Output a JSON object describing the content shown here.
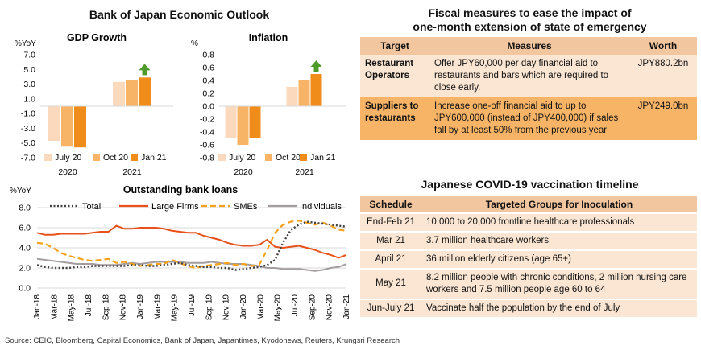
{
  "boj": {
    "title": "Bank of Japan Economic Outlook",
    "legend": [
      "July 20",
      "Oct 20",
      "Jan 21"
    ],
    "colors": [
      "#fbd9bc",
      "#f7b466",
      "#f08c1a"
    ],
    "arrow_color": "#4e9a2a"
  },
  "chart_data": [
    {
      "type": "bar",
      "title": "GDP Growth",
      "ylabel": "%YoY",
      "ylim": [
        -7.0,
        7.0
      ],
      "yticks": [
        "7.0",
        "5.0",
        "3.0",
        "1.0",
        "-1.0",
        "-3.0",
        "-5.0",
        "-7.0"
      ],
      "categories": [
        "2020",
        "2021"
      ],
      "series": [
        {
          "name": "July 20",
          "values": [
            -4.7,
            3.3
          ]
        },
        {
          "name": "Oct 20",
          "values": [
            -5.5,
            3.6
          ]
        },
        {
          "name": "Jan 21",
          "values": [
            -5.6,
            3.9
          ]
        }
      ],
      "arrow_on": "2021"
    },
    {
      "type": "bar",
      "title": "Inflation",
      "ylabel": "%",
      "ylim": [
        -0.8,
        0.8
      ],
      "yticks": [
        "0.8",
        "0.6",
        "0.4",
        "0.2",
        "0.0",
        "-0.2",
        "-0.4",
        "-0.6",
        "-0.8"
      ],
      "categories": [
        "2020",
        "2021"
      ],
      "series": [
        {
          "name": "July 20",
          "values": [
            -0.5,
            0.3
          ]
        },
        {
          "name": "Oct 20",
          "values": [
            -0.6,
            0.4
          ]
        },
        {
          "name": "Jan 21",
          "values": [
            -0.5,
            0.5
          ]
        }
      ],
      "arrow_on": "2021"
    },
    {
      "type": "line",
      "title": "Outstanding bank loans",
      "ylabel": "%YoY",
      "ylim": [
        0,
        8
      ],
      "yticks": [
        "8.0",
        "6.0",
        "4.0",
        "2.0",
        "0.0"
      ],
      "x_labels": [
        "Jan-18",
        "Mar-18",
        "May-18",
        "Jul-18",
        "Sep-18",
        "Nov-18",
        "Jan-19",
        "Mar-19",
        "May-19",
        "Jul-19",
        "Sep-19",
        "Nov-19",
        "Jan-20",
        "Mar-20",
        "May-20",
        "Jul-20",
        "Sep-20",
        "Nov-20",
        "Jan-21"
      ],
      "legend": [
        "Total",
        "Large Firms",
        "SMEs",
        "Individuals"
      ],
      "series": [
        {
          "name": "Total",
          "color": "#404040",
          "style": "dotted",
          "values": [
            2.3,
            2.1,
            2.0,
            2.0,
            2.0,
            2.1,
            2.1,
            2.2,
            2.2,
            2.2,
            2.2,
            2.2,
            2.3,
            2.3,
            2.2,
            2.2,
            2.3,
            2.4,
            2.5,
            2.3,
            2.2,
            2.1,
            2.1,
            2.0,
            2.0,
            1.8,
            1.9,
            2.0,
            2.1,
            2.3,
            2.8,
            4.5,
            5.8,
            6.3,
            6.6,
            6.5,
            6.4,
            6.3,
            6.2,
            6.1
          ]
        },
        {
          "name": "Large Firms",
          "color": "#e8521a",
          "style": "solid",
          "values": [
            5.5,
            5.3,
            5.3,
            5.4,
            5.4,
            5.4,
            5.4,
            5.5,
            5.6,
            5.6,
            6.2,
            5.9,
            5.9,
            6.0,
            6.0,
            6.0,
            5.9,
            5.7,
            5.6,
            5.5,
            5.5,
            5.2,
            5.0,
            4.8,
            4.5,
            4.3,
            4.2,
            4.2,
            4.3,
            4.8,
            4.1,
            4.0,
            4.1,
            4.2,
            4.0,
            3.8,
            3.5,
            3.3,
            3.0,
            3.3
          ]
        },
        {
          "name": "SMEs",
          "color": "#f5a11c",
          "style": "dashed",
          "values": [
            4.5,
            4.4,
            4.0,
            3.5,
            3.2,
            3.0,
            2.8,
            2.7,
            2.8,
            2.9,
            2.5,
            2.6,
            2.4,
            2.2,
            2.3,
            2.4,
            2.4,
            2.8,
            2.5,
            2.2,
            2.0,
            2.2,
            2.3,
            2.4,
            2.5,
            2.3,
            2.4,
            2.2,
            2.3,
            3.8,
            5.5,
            6.3,
            6.6,
            6.7,
            6.5,
            6.3,
            6.5,
            6.2,
            5.8,
            5.7
          ]
        },
        {
          "name": "Individuals",
          "color": "#a49da0",
          "style": "solid",
          "values": [
            2.9,
            2.8,
            2.7,
            2.6,
            2.5,
            2.4,
            2.4,
            2.4,
            2.3,
            2.3,
            2.3,
            2.4,
            2.5,
            2.4,
            2.5,
            2.6,
            2.6,
            2.6,
            2.6,
            2.5,
            2.5,
            2.5,
            2.6,
            2.5,
            2.4,
            2.4,
            2.4,
            2.3,
            2.2,
            2.0,
            2.0,
            1.9,
            1.9,
            1.9,
            1.8,
            1.7,
            1.8,
            2.0,
            2.1,
            2.4
          ]
        }
      ]
    }
  ],
  "fiscal": {
    "title_line1": "Fiscal measures to ease the impact of",
    "title_line2": "one-month extension of state of emergency",
    "headers": [
      "Target",
      "Measures",
      "Worth"
    ],
    "rows": [
      {
        "target": "Restaurant Operators",
        "measures": "Offer JPY60,000 per day financial aid to restaurants and bars which are required to close early.",
        "worth": "JPY880.2bn"
      },
      {
        "target": "Suppliers to restaurants",
        "measures": "Increase one-off financial aid to up to JPY600,000 (instead of JPY400,000) if sales fall by at least 50% from the previous year",
        "worth": "JPY249.0bn"
      }
    ]
  },
  "vaccine": {
    "title": "Japanese COVID-19 vaccination timeline",
    "headers": [
      "Schedule",
      "Targeted Groups for Inoculation"
    ],
    "rows": [
      {
        "schedule": "End-Feb 21",
        "group": "10,000 to 20,000 frontline healthcare professionals"
      },
      {
        "schedule": "Mar 21",
        "group": "3.7 million healthcare workers"
      },
      {
        "schedule": "April 21",
        "group": "36 million elderly citizens (age 65+)"
      },
      {
        "schedule": "May 21",
        "group": "8.2 million people with chronic conditions, 2 million nursing care workers and 7.5 million people age 60 to 64"
      },
      {
        "schedule": "Jun-July 21",
        "group": "Vaccinate half the population by the end of July"
      }
    ]
  },
  "source": "Source: CEIC, Bloomberg, Capital Economics, Bank of Japan, Japantimes, Kyodonews, Reuters, Krungsri Research"
}
